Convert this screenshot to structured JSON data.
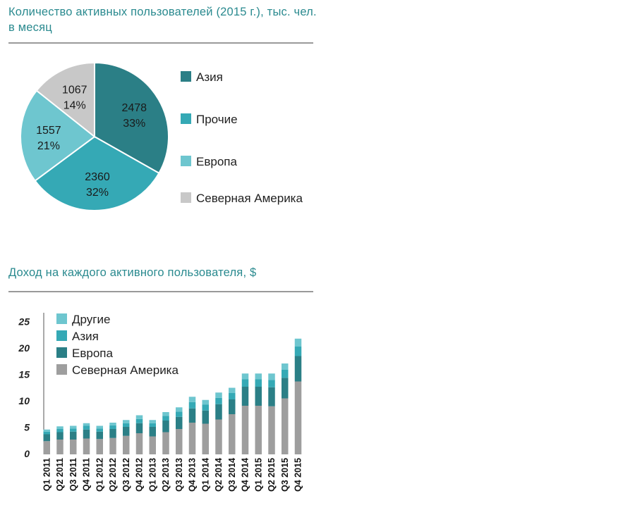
{
  "titles": {
    "pie": "Количество активных пользователей (2015 г.), тыс. чел. в месяц",
    "bar": "Доход на каждого активного пользователя, $"
  },
  "chart_data": [
    {
      "type": "pie",
      "title": "Количество активных пользователей (2015 г.), тыс. чел. в месяц",
      "slices": [
        {
          "name": "Азия",
          "value": 2478,
          "percent": "33%",
          "color": "#2b7f86"
        },
        {
          "name": "Прочие",
          "value": 2360,
          "percent": "32%",
          "color": "#35a9b5"
        },
        {
          "name": "Европа",
          "value": 1557,
          "percent": "21%",
          "color": "#6ec6cf"
        },
        {
          "name": "Северная Америка",
          "value": 1067,
          "percent": "14%",
          "color": "#c8c8c8"
        }
      ]
    },
    {
      "type": "bar",
      "stacked": true,
      "title": "Доход на каждого активного пользователя, $",
      "categories": [
        "Q1 2011",
        "Q2 2011",
        "Q3 2011",
        "Q4 2011",
        "Q1 2012",
        "Q2 2012",
        "Q3 2012",
        "Q4 2012",
        "Q1 2013",
        "Q2 2013",
        "Q3 2013",
        "Q4 2013",
        "Q1 2014",
        "Q2 2014",
        "Q3 2014",
        "Q4 2014",
        "Q1 2015",
        "Q2 2015",
        "Q3 2015",
        "Q4 2015"
      ],
      "yticks": [
        "0",
        "5",
        "10",
        "15",
        "20",
        "25"
      ],
      "ylim": [
        0,
        25
      ],
      "series": [
        {
          "name": "Северная Америка",
          "color": "#9e9e9e",
          "values": [
            2.5,
            2.8,
            2.8,
            3.0,
            2.9,
            3.1,
            3.5,
            4.0,
            3.4,
            4.2,
            4.8,
            6.0,
            5.8,
            6.6,
            7.6,
            9.2,
            9.2,
            9.1,
            10.6,
            13.8
          ]
        },
        {
          "name": "Европа",
          "color": "#2b7f86",
          "values": [
            1.3,
            1.4,
            1.5,
            1.7,
            1.4,
            1.7,
            1.7,
            1.9,
            1.8,
            2.2,
            2.3,
            2.7,
            2.5,
            2.9,
            2.8,
            3.6,
            3.6,
            3.6,
            3.9,
            4.8
          ]
        },
        {
          "name": "Азия",
          "color": "#35a9b5",
          "values": [
            0.5,
            0.6,
            0.6,
            0.7,
            0.6,
            0.7,
            0.7,
            0.8,
            0.7,
            0.9,
            1.0,
            1.2,
            1.1,
            1.2,
            1.2,
            1.4,
            1.4,
            1.4,
            1.5,
            1.8
          ]
        },
        {
          "name": "Другие",
          "color": "#6ec6cf",
          "values": [
            0.4,
            0.5,
            0.5,
            0.5,
            0.5,
            0.5,
            0.6,
            0.7,
            0.6,
            0.7,
            0.8,
            1.0,
            0.9,
            1.0,
            1.0,
            1.1,
            1.1,
            1.2,
            1.2,
            1.5
          ]
        }
      ],
      "legend": [
        "Другие",
        "Азия",
        "Европа",
        "Северная Америка"
      ]
    }
  ]
}
